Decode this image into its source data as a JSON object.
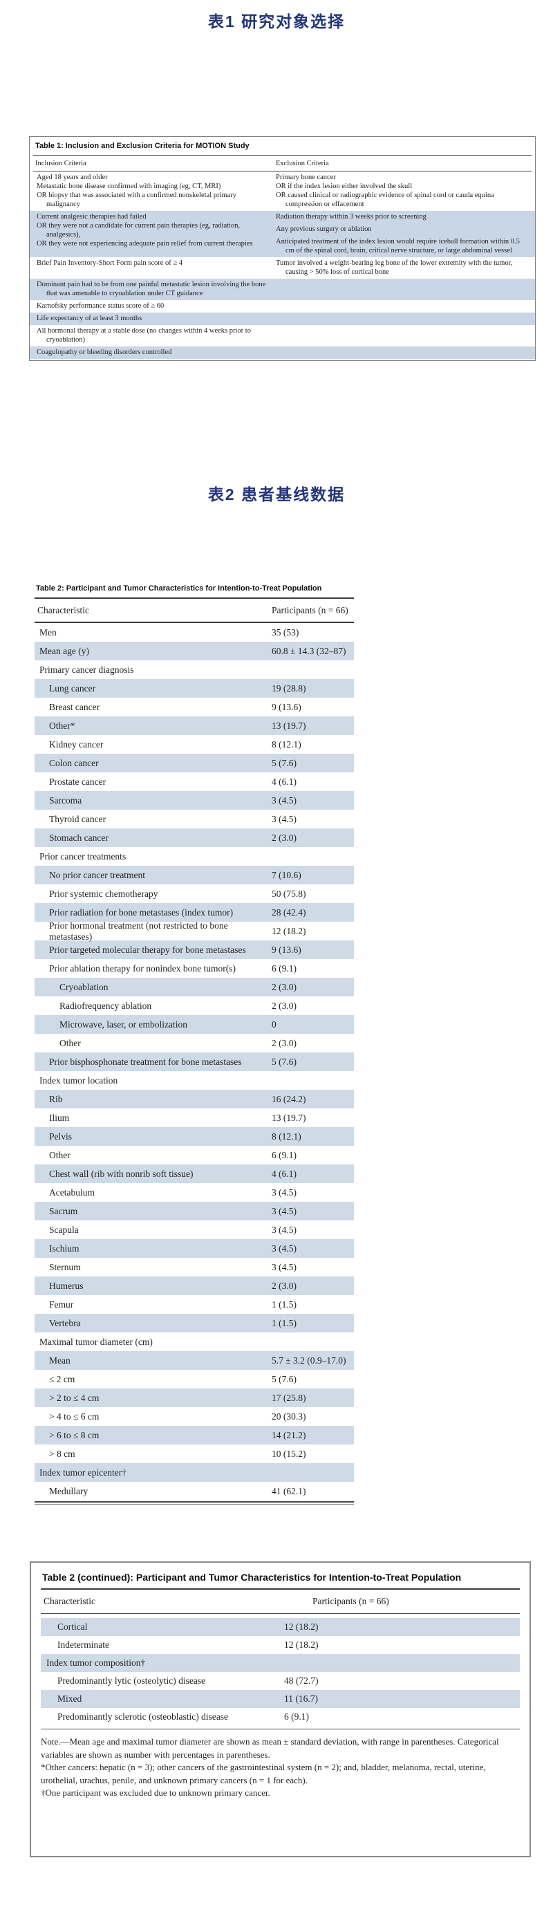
{
  "page": {
    "heading1": "表1  研究对象选择",
    "heading2": "表2  患者基线数据"
  },
  "table1": {
    "title": "Table 1: Inclusion and Exclusion Criteria for MOTION Study",
    "col_inclusion": "Inclusion Criteria",
    "col_exclusion": "Exclusion Criteria",
    "rows": [
      {
        "cls": "",
        "left": [
          "Aged 18 years and older",
          "Metastatic bone disease confirmed with imaging (eg, CT, MRI)",
          "OR biopsy that was associated with a confirmed nonskeletal primary malignancy"
        ],
        "right": [
          "Primary bone cancer",
          "OR if the index lesion either involved the skull",
          "OR caused clinical or radiographic evidence of spinal cord or cauda equina compression or effacement"
        ]
      },
      {
        "cls": "b gapR",
        "left": [
          "Current analgesic therapies had failed",
          "OR they were not a candidate for current pain therapies (eg, radiation, analgesics),",
          "OR they were not experiencing adequate pain relief from current therapies"
        ],
        "right": [
          "Radiation therapy within 3 weeks prior to screening",
          "Any previous surgery or ablation",
          "Anticipated treatment of the index lesion would require iceball formation within 0.5 cm of the spinal cord, brain, critical nerve structure, or large abdominal vessel"
        ]
      },
      {
        "cls": "",
        "left": [
          "Brief Pain Inventory-Short Form pain score of ≥ 4"
        ],
        "right": [
          "Tumor involved a weight-bearing leg bone of the lower extremity with the tumor, causing > 50% loss of cortical bone"
        ]
      },
      {
        "cls": "b",
        "left": [
          "Dominant pain had to be from one painful metastatic lesion involving the bone that was amenable to cryoablation under CT guidance"
        ],
        "right": []
      },
      {
        "cls": "",
        "left": [
          "Karnofsky performance status score of ≥ 60"
        ],
        "right": []
      },
      {
        "cls": "b",
        "left": [
          "Life expectancy of at least 3 months"
        ],
        "right": []
      },
      {
        "cls": "",
        "left": [
          "All hormonal therapy at a stable dose (no changes within 4 weeks prior to cryoablation)"
        ],
        "right": []
      },
      {
        "cls": "b",
        "left": [
          "Coagulopathy or bleeding disorders controlled"
        ],
        "right": []
      }
    ]
  },
  "table2": {
    "title": "Table 2: Participant and Tumor Characteristics for Intention-to-Treat Population",
    "col_characteristic": "Characteristic",
    "col_participants": "Participants (n = 66)",
    "rows": [
      {
        "label": "Men",
        "value": "35 (53)",
        "cls": ""
      },
      {
        "label": "Mean age (y)",
        "value": "60.8 ± 14.3 (32–87)",
        "cls": "b"
      },
      {
        "label": "Primary cancer diagnosis",
        "value": "",
        "cls": ""
      },
      {
        "label": "Lung cancer",
        "value": "19 (28.8)",
        "cls": "b i1"
      },
      {
        "label": "Breast cancer",
        "value": "9 (13.6)",
        "cls": "i1"
      },
      {
        "label": "Other*",
        "value": "13 (19.7)",
        "cls": "b i1"
      },
      {
        "label": "Kidney cancer",
        "value": "8 (12.1)",
        "cls": "i1"
      },
      {
        "label": "Colon cancer",
        "value": "5 (7.6)",
        "cls": "b i1"
      },
      {
        "label": "Prostate cancer",
        "value": "4 (6.1)",
        "cls": "i1"
      },
      {
        "label": "Sarcoma",
        "value": "3 (4.5)",
        "cls": "b i1"
      },
      {
        "label": "Thyroid cancer",
        "value": "3 (4.5)",
        "cls": "i1"
      },
      {
        "label": "Stomach cancer",
        "value": "2 (3.0)",
        "cls": "b i1"
      },
      {
        "label": "Prior cancer treatments",
        "value": "",
        "cls": ""
      },
      {
        "label": "No prior cancer treatment",
        "value": "7 (10.6)",
        "cls": "b i1"
      },
      {
        "label": "Prior systemic chemotherapy",
        "value": "50 (75.8)",
        "cls": "i1"
      },
      {
        "label": "Prior radiation for bone metastases (index tumor)",
        "value": "28 (42.4)",
        "cls": "b i1"
      },
      {
        "label": "Prior hormonal treatment (not restricted to bone metastases)",
        "value": "12 (18.2)",
        "cls": "i1"
      },
      {
        "label": "Prior targeted molecular therapy for bone metastases",
        "value": "9 (13.6)",
        "cls": "b i1"
      },
      {
        "label": "Prior ablation therapy for nonindex bone tumor(s)",
        "value": "6 (9.1)",
        "cls": "i1"
      },
      {
        "label": "Cryoablation",
        "value": "2 (3.0)",
        "cls": "b i2"
      },
      {
        "label": "Radiofrequency ablation",
        "value": "2 (3.0)",
        "cls": "i2"
      },
      {
        "label": "Microwave, laser, or embolization",
        "value": "0",
        "cls": "b i2"
      },
      {
        "label": "Other",
        "value": "2 (3.0)",
        "cls": "i2"
      },
      {
        "label": "Prior bisphosphonate treatment for bone metastases",
        "value": "5 (7.6)",
        "cls": "b i1"
      },
      {
        "label": "Index tumor location",
        "value": "",
        "cls": ""
      },
      {
        "label": "Rib",
        "value": "16 (24.2)",
        "cls": "b i1"
      },
      {
        "label": "Ilium",
        "value": "13 (19.7)",
        "cls": "i1"
      },
      {
        "label": "Pelvis",
        "value": "8 (12.1)",
        "cls": "b i1"
      },
      {
        "label": "Other",
        "value": "6 (9.1)",
        "cls": "i1"
      },
      {
        "label": "Chest wall (rib with nonrib soft tissue)",
        "value": "4 (6.1)",
        "cls": "b i1"
      },
      {
        "label": "Acetabulum",
        "value": "3 (4.5)",
        "cls": "i1"
      },
      {
        "label": "Sacrum",
        "value": "3 (4.5)",
        "cls": "b i1"
      },
      {
        "label": "Scapula",
        "value": "3 (4.5)",
        "cls": "i1"
      },
      {
        "label": "Ischium",
        "value": "3 (4.5)",
        "cls": "b i1"
      },
      {
        "label": "Sternum",
        "value": "3 (4.5)",
        "cls": "i1"
      },
      {
        "label": "Humerus",
        "value": "2 (3.0)",
        "cls": "b i1"
      },
      {
        "label": "Femur",
        "value": "1 (1.5)",
        "cls": "i1"
      },
      {
        "label": "Vertebra",
        "value": "1 (1.5)",
        "cls": "b i1"
      },
      {
        "label": "Maximal tumor diameter (cm)",
        "value": "",
        "cls": ""
      },
      {
        "label": "Mean",
        "value": "5.7 ± 3.2 (0.9–17.0)",
        "cls": "b i1"
      },
      {
        "label": "≤ 2 cm",
        "value": "5 (7.6)",
        "cls": "i1"
      },
      {
        "label": "> 2 to ≤ 4 cm",
        "value": "17 (25.8)",
        "cls": "b i1"
      },
      {
        "label": "> 4 to ≤ 6 cm",
        "value": "20 (30.3)",
        "cls": "i1"
      },
      {
        "label": "> 6 to ≤ 8 cm",
        "value": "14 (21.2)",
        "cls": "b i1"
      },
      {
        "label": "> 8 cm",
        "value": "10 (15.2)",
        "cls": "i1"
      },
      {
        "label": "Index tumor epicenter†",
        "value": "",
        "cls": "b"
      },
      {
        "label": "Medullary",
        "value": "41 (62.1)",
        "cls": "i1"
      }
    ]
  },
  "table2_continued": {
    "title": "Table 2 (continued): Participant and Tumor Characteristics for Intention-to-Treat Population",
    "col_characteristic": "Characteristic",
    "col_participants": "Participants (n = 66)",
    "rows": [
      {
        "label": "Cortical",
        "value": "12 (18.2)",
        "cls": "b i1"
      },
      {
        "label": "Indeterminate",
        "value": "12 (18.2)",
        "cls": "i1"
      },
      {
        "label": "Index tumor composition†",
        "value": "",
        "cls": "b"
      },
      {
        "label": "Predominantly lytic (osteolytic) disease",
        "value": "48 (72.7)",
        "cls": "i1"
      },
      {
        "label": "Mixed",
        "value": "11 (16.7)",
        "cls": "b i1"
      },
      {
        "label": "Predominantly sclerotic (osteoblastic) disease",
        "value": "6 (9.1)",
        "cls": "i1"
      }
    ],
    "note": "Note.—Mean age and maximal tumor diameter are shown as mean ± standard deviation, with range in parentheses. Categorical variables are shown as number with percentages in parentheses.",
    "footnote_star": "*Other cancers: hepatic (n = 3); other cancers of the gastrointestinal system (n = 2); and, bladder, melanoma, rectal, uterine, urothelial, urachus, penile, and unknown primary cancers (n = 1 for each).",
    "footnote_dagger": "†One participant was excluded due to unknown primary cancer."
  }
}
